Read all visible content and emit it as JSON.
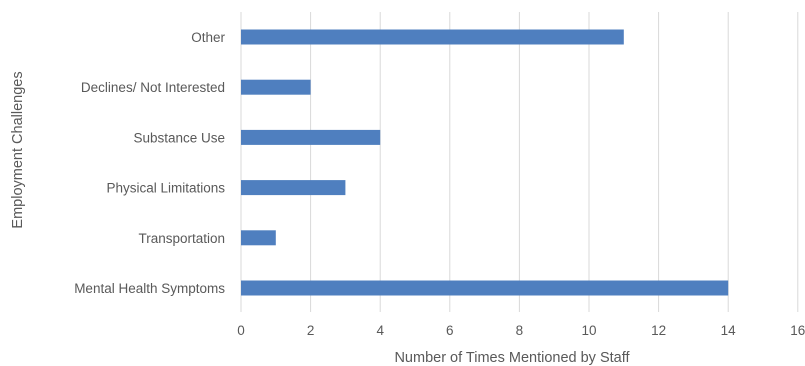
{
  "chart_data": {
    "type": "bar",
    "orientation": "horizontal",
    "title": "",
    "xlabel": "Number of Times Mentioned by Staff",
    "ylabel": "Employment Challenges",
    "categories": [
      "Other",
      "Declines/ Not Interested",
      "Substance Use",
      "Physical Limitations",
      "Transportation",
      "Mental Health Symptoms"
    ],
    "values": [
      11,
      2,
      4,
      3,
      1,
      14
    ],
    "xlim": [
      0,
      16
    ],
    "xticks": [
      "0",
      "2",
      "4",
      "6",
      "8",
      "10",
      "12",
      "14",
      "16"
    ],
    "grid": "vertical",
    "legend": "none",
    "colors": {
      "bar": "#4F7FBF",
      "grid": "#D9D9D9",
      "text": "#595959"
    }
  }
}
